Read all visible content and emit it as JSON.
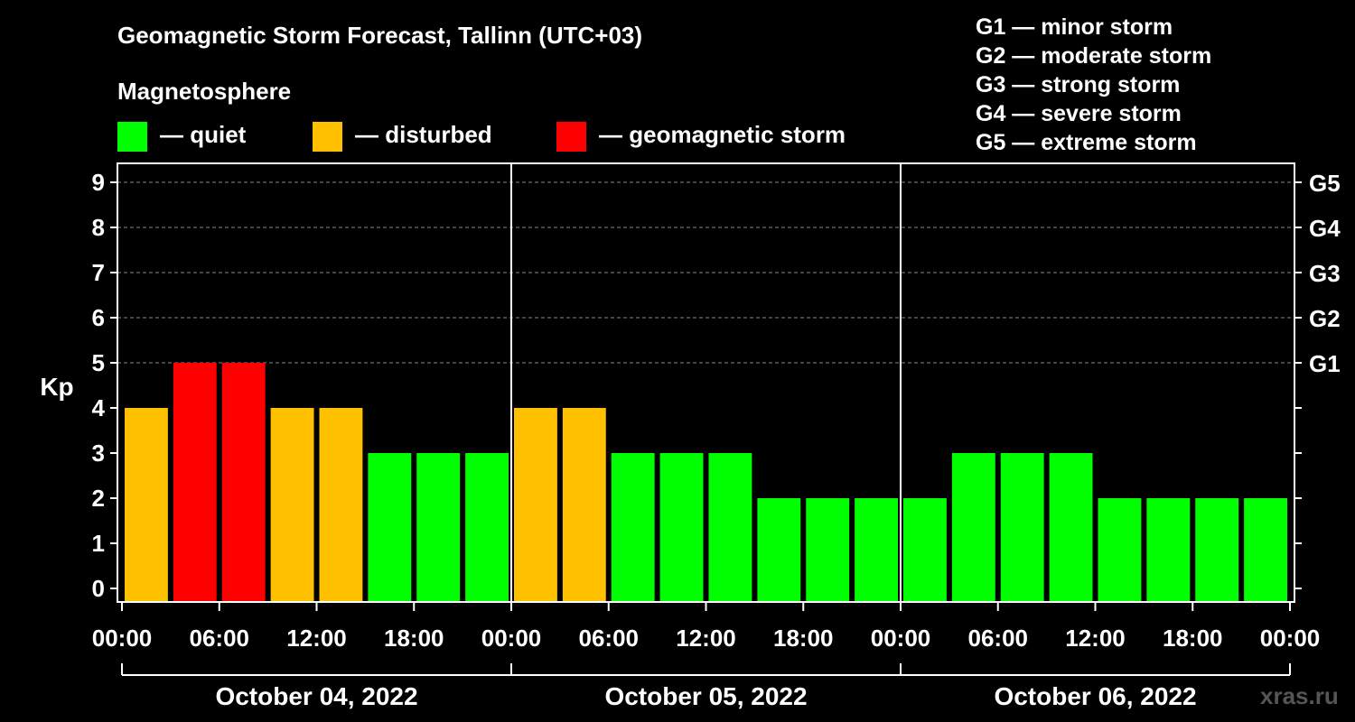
{
  "chart_data": {
    "type": "bar",
    "title": "Geomagnetic Storm Forecast, Tallinn (UTC+03)",
    "ylabel": "Kp",
    "ylim": [
      0,
      9
    ],
    "yticks": [
      "0",
      "1",
      "2",
      "3",
      "4",
      "5",
      "6",
      "7",
      "8",
      "9"
    ],
    "right_ticks": [
      {
        "kp": 5,
        "label": "G1"
      },
      {
        "kp": 6,
        "label": "G2"
      },
      {
        "kp": 7,
        "label": "G3"
      },
      {
        "kp": 8,
        "label": "G4"
      },
      {
        "kp": 9,
        "label": "G5"
      }
    ],
    "xtick_labels": [
      "00:00",
      "06:00",
      "12:00",
      "18:00",
      "00:00",
      "06:00",
      "12:00",
      "18:00",
      "00:00",
      "06:00",
      "12:00",
      "18:00",
      "00:00"
    ],
    "days": [
      "October 04, 2022",
      "October 05, 2022",
      "October 06, 2022"
    ],
    "values": [
      4,
      5,
      5,
      4,
      4,
      3,
      3,
      3,
      4,
      4,
      3,
      3,
      3,
      2,
      2,
      2,
      2,
      3,
      3,
      3,
      2,
      2,
      2,
      2
    ],
    "colors": {
      "quiet": "#00ff00",
      "disturbed": "#ffc000",
      "storm": "#ff0000"
    },
    "magnetosphere_label": "Magnetosphere",
    "legend": [
      {
        "key": "quiet",
        "label": "— quiet"
      },
      {
        "key": "disturbed",
        "label": "— disturbed"
      },
      {
        "key": "storm",
        "label": "— geomagnetic storm"
      }
    ],
    "g_scale": [
      "G1 — minor storm",
      "G2 — moderate storm",
      "G3 — strong storm",
      "G4 — severe storm",
      "G5 — extreme storm"
    ],
    "watermark": "xras.ru"
  }
}
